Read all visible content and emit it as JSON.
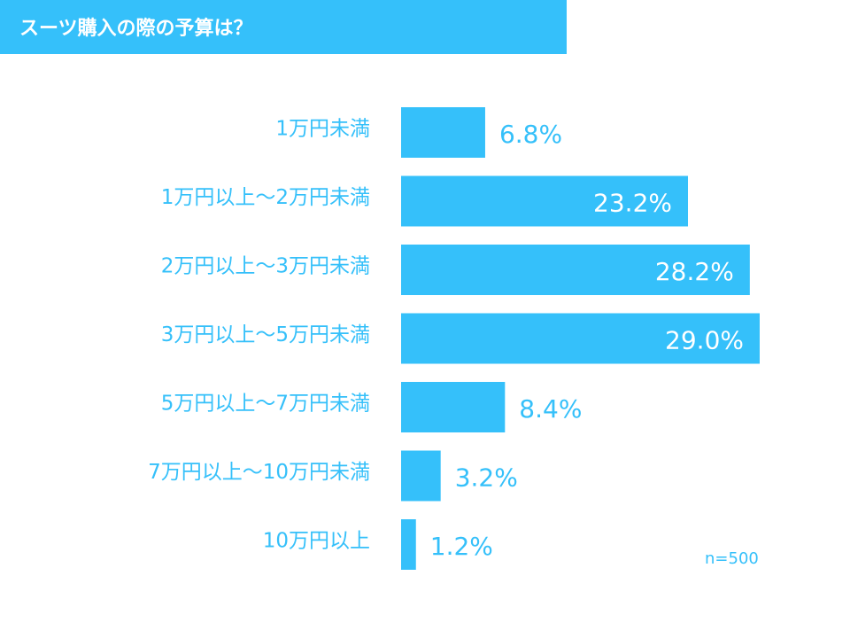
{
  "chart_data": {
    "type": "bar",
    "orientation": "horizontal",
    "title": "スーツ購入の際の予算は？",
    "categories": [
      "1万円未満",
      "1万円以上～2万円未満",
      "2万円以上～3万円未満",
      "3万円以上～5万円未満",
      "5万円以上～7万円未満",
      "7万円以上～10万円未満",
      "10万円以上"
    ],
    "values": [
      6.8,
      23.2,
      28.2,
      29.0,
      8.4,
      3.2,
      1.2
    ],
    "data_labels": [
      "6.8%",
      "23.2%",
      "28.2%",
      "29.0%",
      "8.4%",
      "3.2%",
      "1.2%"
    ],
    "unit": "%",
    "xlim": [
      0,
      29.0
    ],
    "grid": false,
    "legend": "none",
    "note": "n=500",
    "colors": {
      "bar": "#35c0fa",
      "label": "#35c0fa",
      "inside_label": "#ffffff",
      "banner": "#35c0fa",
      "title_text": "#ffffff"
    }
  }
}
